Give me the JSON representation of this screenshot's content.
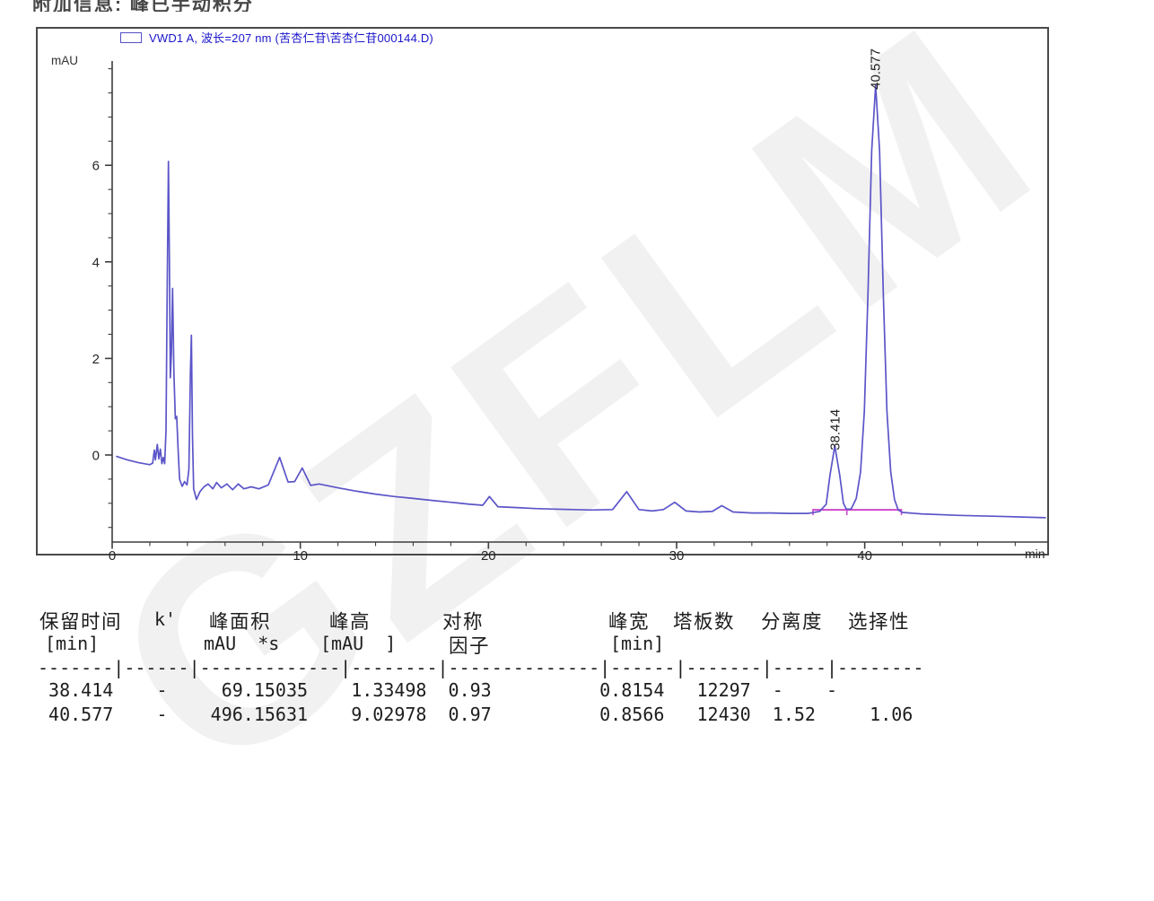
{
  "page": {
    "top_note": "附加信息: 峰已手动积分",
    "watermark": "GZFLM"
  },
  "chart": {
    "legend_label": "VWD1 A, 波长=207 nm (苦杏仁苷\\苦杏仁苷000144.D)",
    "y_unit_label": "mAU",
    "colors": {
      "trace": "#5b55c8",
      "legend_text": "#1a15cb",
      "baseline_marker": "#cf49cb",
      "axis": "#3d3d3d"
    }
  },
  "chart_data": {
    "type": "line",
    "series_label": "VWD1 A, 波长=207 nm (苦杏仁苷\\苦杏仁苷000144.D)",
    "x_unit": "min",
    "y_unit": "mAU",
    "x_ticks_labeled": [
      0,
      10,
      20,
      30,
      40
    ],
    "x_minor_tick_step": 2,
    "x_max": 48,
    "y_ticks_labeled": [
      0,
      2,
      4,
      6
    ],
    "y_minor_tick_step": 0.5,
    "y_minor_range": [
      -1.5,
      8
    ],
    "grid": false,
    "legend_position": "top-left",
    "peaks": [
      {
        "label": "38.414",
        "retention_min": 38.414,
        "apex_mau": 0.19,
        "height_mau": 1.33498,
        "area_mau_s": 69.15035
      },
      {
        "label": "40.577",
        "retention_min": 40.577,
        "apex_mau": 7.66,
        "height_mau": 9.02978,
        "area_mau_s": 496.15631
      }
    ],
    "integration_baseline": {
      "t_start": 37.25,
      "t_end": 41.95,
      "mau": -1.135,
      "marker_ts": [
        37.25,
        39.05,
        41.95
      ]
    },
    "trace_points_t_mau": [
      [
        0.24,
        -0.03
      ],
      [
        0.8,
        -0.1
      ],
      [
        1.4,
        -0.16
      ],
      [
        2.0,
        -0.2
      ],
      [
        2.15,
        -0.17
      ],
      [
        2.24,
        0.1
      ],
      [
        2.3,
        -0.1
      ],
      [
        2.4,
        0.22
      ],
      [
        2.48,
        -0.08
      ],
      [
        2.56,
        0.12
      ],
      [
        2.64,
        -0.18
      ],
      [
        2.72,
        -0.05
      ],
      [
        2.79,
        -0.18
      ],
      [
        2.86,
        0.5
      ],
      [
        2.93,
        3.6
      ],
      [
        2.99,
        6.08
      ],
      [
        3.04,
        4.2
      ],
      [
        3.09,
        1.6
      ],
      [
        3.15,
        2.1
      ],
      [
        3.21,
        3.45
      ],
      [
        3.28,
        1.7
      ],
      [
        3.36,
        0.75
      ],
      [
        3.43,
        0.8
      ],
      [
        3.5,
        0.15
      ],
      [
        3.58,
        -0.5
      ],
      [
        3.72,
        -0.65
      ],
      [
        3.85,
        -0.55
      ],
      [
        3.98,
        -0.62
      ],
      [
        4.08,
        -0.3
      ],
      [
        4.16,
        1.7
      ],
      [
        4.21,
        2.48
      ],
      [
        4.27,
        0.4
      ],
      [
        4.33,
        -0.7
      ],
      [
        4.48,
        -0.92
      ],
      [
        4.68,
        -0.75
      ],
      [
        4.88,
        -0.66
      ],
      [
        5.1,
        -0.6
      ],
      [
        5.35,
        -0.7
      ],
      [
        5.55,
        -0.57
      ],
      [
        5.8,
        -0.68
      ],
      [
        6.1,
        -0.6
      ],
      [
        6.4,
        -0.72
      ],
      [
        6.7,
        -0.6
      ],
      [
        7.0,
        -0.7
      ],
      [
        7.4,
        -0.66
      ],
      [
        7.8,
        -0.7
      ],
      [
        8.3,
        -0.62
      ],
      [
        8.9,
        -0.05
      ],
      [
        9.35,
        -0.56
      ],
      [
        9.7,
        -0.55
      ],
      [
        10.1,
        -0.27
      ],
      [
        10.55,
        -0.63
      ],
      [
        11,
        -0.6
      ],
      [
        12,
        -0.68
      ],
      [
        13,
        -0.75
      ],
      [
        14,
        -0.81
      ],
      [
        15,
        -0.86
      ],
      [
        16,
        -0.9
      ],
      [
        17,
        -0.94
      ],
      [
        18,
        -0.98
      ],
      [
        19,
        -1.02
      ],
      [
        19.7,
        -1.04
      ],
      [
        20.05,
        -0.86
      ],
      [
        20.5,
        -1.07
      ],
      [
        21.5,
        -1.09
      ],
      [
        22.5,
        -1.11
      ],
      [
        23.5,
        -1.12
      ],
      [
        24.5,
        -1.13
      ],
      [
        25.5,
        -1.14
      ],
      [
        26.6,
        -1.13
      ],
      [
        27.35,
        -0.76
      ],
      [
        28.0,
        -1.13
      ],
      [
        28.7,
        -1.16
      ],
      [
        29.3,
        -1.13
      ],
      [
        29.9,
        -0.98
      ],
      [
        30.5,
        -1.16
      ],
      [
        31.2,
        -1.18
      ],
      [
        31.9,
        -1.17
      ],
      [
        32.4,
        -1.05
      ],
      [
        33.0,
        -1.18
      ],
      [
        34,
        -1.2
      ],
      [
        35,
        -1.2
      ],
      [
        36,
        -1.21
      ],
      [
        37,
        -1.21
      ],
      [
        37.6,
        -1.17
      ],
      [
        37.95,
        -1.02
      ],
      [
        38.15,
        -0.42
      ],
      [
        38.41,
        0.19
      ],
      [
        38.67,
        -0.42
      ],
      [
        38.87,
        -1.0
      ],
      [
        39.02,
        -1.12
      ],
      [
        39.28,
        -1.12
      ],
      [
        39.55,
        -0.9
      ],
      [
        39.78,
        -0.35
      ],
      [
        39.98,
        0.9
      ],
      [
        40.17,
        3.3
      ],
      [
        40.37,
        6.3
      ],
      [
        40.58,
        7.66
      ],
      [
        40.79,
        6.3
      ],
      [
        40.99,
        3.3
      ],
      [
        41.18,
        0.9
      ],
      [
        41.38,
        -0.35
      ],
      [
        41.58,
        -0.92
      ],
      [
        41.78,
        -1.14
      ],
      [
        42.0,
        -1.19
      ],
      [
        43,
        -1.22
      ],
      [
        45,
        -1.25
      ],
      [
        47,
        -1.27
      ],
      [
        49.6,
        -1.3
      ]
    ]
  },
  "table": {
    "header_row1": {
      "retention_time": "保留时间",
      "k_prime": "k'",
      "peak_area": "峰面积",
      "peak_height": "峰高",
      "symmetry": "对称",
      "peak_width": "峰宽",
      "plates": "塔板数",
      "resolution": "分离度",
      "selectivity": "选择性"
    },
    "header_row2": {
      "retention_unit": "[min]",
      "area_unit": "mAU  *s",
      "height_unit": "[mAU  ]",
      "symmetry2": "因子",
      "width_unit": "[min]"
    },
    "separator": "-------|------|-------------|--------|--------------|------|-------|-----|--------",
    "rows_display": [
      " 38.414    -     69.15035    1.33498  0.93          0.8154   12297  -    -",
      " 40.577    -    496.15631    9.02978  0.97          0.8566   12430  1.52     1.06"
    ],
    "rows": [
      {
        "retention_time_min": "38.414",
        "k_prime": "-",
        "peak_area_mau_s": "69.15035",
        "peak_height_mau": "1.33498",
        "symmetry_factor": "0.93",
        "peak_width_min": "0.8154",
        "plates": "12297",
        "resolution": "-",
        "selectivity": "-"
      },
      {
        "retention_time_min": "40.577",
        "k_prime": "-",
        "peak_area_mau_s": "496.15631",
        "peak_height_mau": "9.02978",
        "symmetry_factor": "0.97",
        "peak_width_min": "0.8566",
        "plates": "12430",
        "resolution": "1.52",
        "selectivity": "1.06"
      }
    ]
  }
}
